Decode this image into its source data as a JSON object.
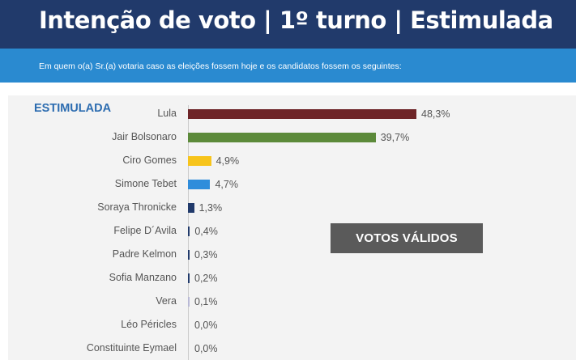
{
  "header": {
    "title": "Intenção de voto | 1º turno | Estimulada",
    "subtitle": "Em quem o(a) Sr.(a) votaria caso as eleições fossem hoje e os candidatos fossem os seguintes:"
  },
  "section_label": "ESTIMULADA",
  "badge_label": "VOTOS VÁLIDOS",
  "chart_data": {
    "type": "bar",
    "orientation": "horizontal",
    "categories": [
      "Lula",
      "Jair Bolsonaro",
      "Ciro Gomes",
      "Simone Tebet",
      "Soraya Thronicke",
      "Felipe D´Avila",
      "Padre Kelmon",
      "Sofia Manzano",
      "Vera",
      "Léo Péricles",
      "Constituinte Eymael"
    ],
    "values": [
      48.3,
      39.7,
      4.9,
      4.7,
      1.3,
      0.4,
      0.3,
      0.2,
      0.1,
      0.0,
      0.0
    ],
    "value_labels": [
      "48,3%",
      "39,7%",
      "4,9%",
      "4,7%",
      "1,3%",
      "0,4%",
      "0,3%",
      "0,2%",
      "0,1%",
      "0,0%",
      "0,0%"
    ],
    "colors": [
      "#6e2528",
      "#5c8a3a",
      "#f7c41b",
      "#2f8ddb",
      "#213a6b",
      "#213a6b",
      "#213a6b",
      "#213a6b",
      "#b9b9d6",
      "#213a6b",
      "#213a6b"
    ],
    "xlim": [
      0,
      48.3
    ],
    "grid": false,
    "legend": "none"
  }
}
